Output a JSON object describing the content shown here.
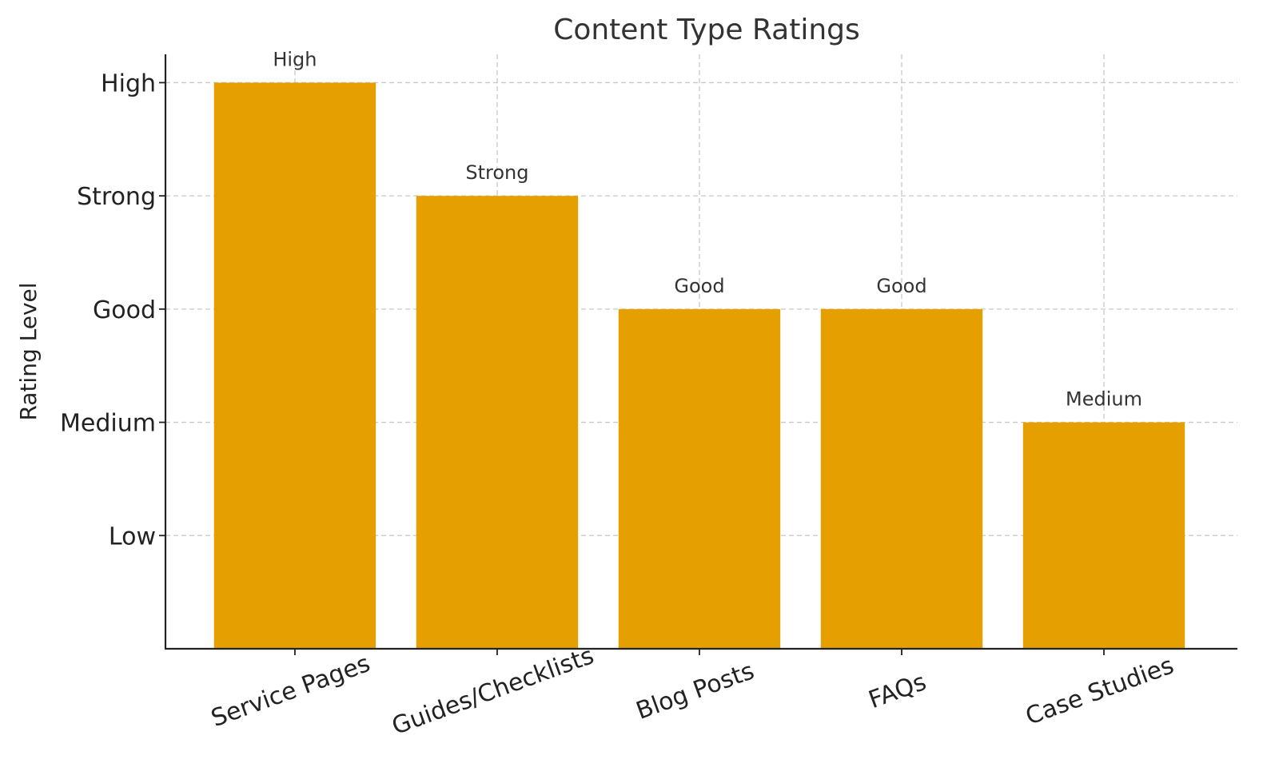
{
  "chart_data": {
    "type": "bar",
    "title": "Content Type Ratings",
    "xlabel": "",
    "ylabel": "Rating Level",
    "categories": [
      "Service Pages",
      "Guides/Checklists",
      "Blog Posts",
      "FAQs",
      "Case Studies"
    ],
    "values": [
      5,
      4,
      3,
      3,
      2
    ],
    "data_labels": [
      "High",
      "Strong",
      "Good",
      "Good",
      "Medium"
    ],
    "y_ticks": [
      {
        "value": 1,
        "label": "Low"
      },
      {
        "value": 2,
        "label": "Medium"
      },
      {
        "value": 3,
        "label": "Good"
      },
      {
        "value": 4,
        "label": "Strong"
      },
      {
        "value": 5,
        "label": "High"
      }
    ],
    "ylim": [
      0,
      5.25
    ],
    "grid": true,
    "bar_color": "#E5A000"
  }
}
